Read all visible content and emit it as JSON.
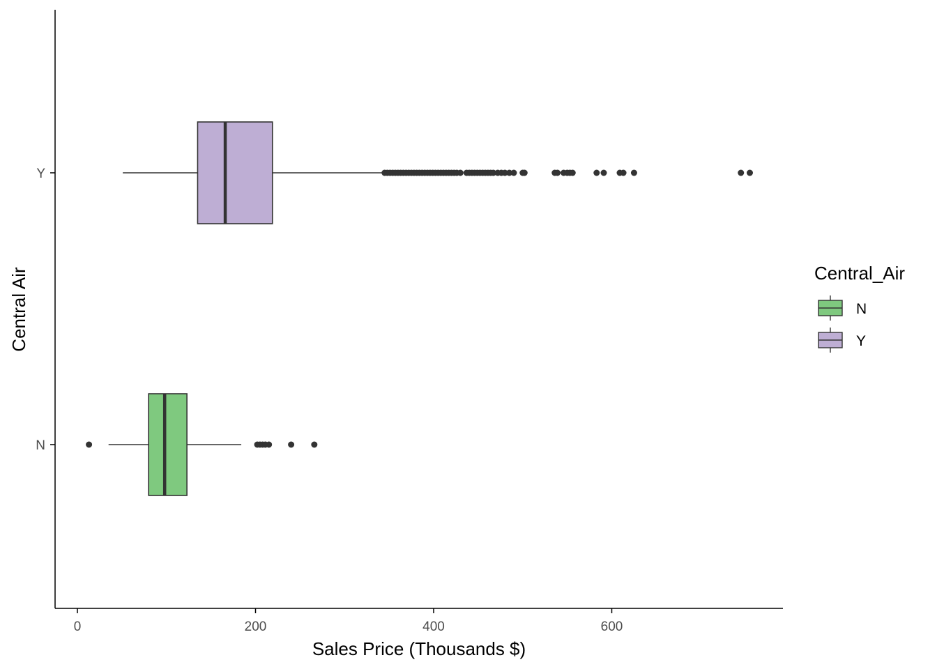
{
  "chart_data": {
    "type": "boxplot",
    "orientation": "horizontal",
    "xlabel": "Sales Price (Thousands $)",
    "ylabel": "Central Air",
    "xlim": [
      -25,
      790
    ],
    "x_ticks": [
      0,
      200,
      400,
      600
    ],
    "grid": false,
    "legend": {
      "title": "Central_Air",
      "position": "right"
    },
    "categories": [
      "N",
      "Y"
    ],
    "series": [
      {
        "name": "N",
        "color": "#7fc97f",
        "whisker_low": 35,
        "q1": 80,
        "median": 98,
        "q3": 123,
        "whisker_high": 184,
        "outliers": [
          13,
          202,
          205,
          208,
          211,
          215,
          240,
          266
        ]
      },
      {
        "name": "Y",
        "color": "#beaed4",
        "whisker_low": 51,
        "q1": 135,
        "median": 166,
        "q3": 219,
        "whisker_high": 344,
        "outliers": [
          345,
          348,
          351,
          354,
          357,
          360,
          363,
          366,
          369,
          372,
          375,
          378,
          381,
          384,
          387,
          390,
          393,
          396,
          399,
          402,
          405,
          408,
          411,
          414,
          417,
          420,
          423,
          426,
          430,
          437,
          440,
          443,
          446,
          449,
          452,
          455,
          458,
          461,
          464,
          467,
          472,
          476,
          480,
          485,
          490,
          500,
          502,
          536,
          539,
          546,
          550,
          553,
          556,
          583,
          591,
          609,
          613,
          625,
          745,
          755
        ]
      }
    ]
  },
  "colors": {
    "outline": "#333333",
    "axis": "#000000"
  }
}
